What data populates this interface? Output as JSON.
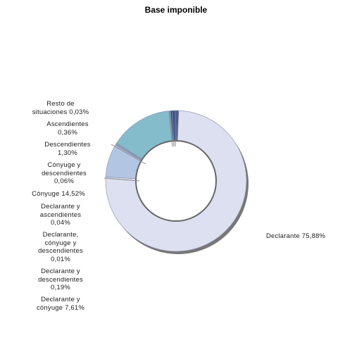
{
  "chart_data": {
    "type": "pie",
    "title": "Base imponible",
    "slices": [
      {
        "name": "Declarante",
        "value": 75.88,
        "label": "Declarante 75,88%",
        "color": "#dde0f0"
      },
      {
        "name": "Declarante y cónyuge",
        "value": 7.61,
        "label": "Declarante y cónyuge 7,61%",
        "color": "#b2c6e4"
      },
      {
        "name": "Declarante y descendientes",
        "value": 0.19,
        "label": "Declarante y descendientes 0,19%",
        "color": "#8fb3d6"
      },
      {
        "name": "Declarante, cónyuge y descendientes",
        "value": 0.01,
        "label": "Declarante, cónyuge y descendientes 0,01%",
        "color": "#9fb8d8"
      },
      {
        "name": "Declarante y ascendientes",
        "value": 0.04,
        "label": "Declarante y ascendientes 0,04%",
        "color": "#7fa6c8"
      },
      {
        "name": "Cónyuge",
        "value": 14.52,
        "label": "Cónyuge 14,52%",
        "color": "#84bccc"
      },
      {
        "name": "Cónyuge y descendientes",
        "value": 0.06,
        "label": "Cónyuge y descendientes 0,06%",
        "color": "#5c8fb8"
      },
      {
        "name": "Descendientes",
        "value": 1.3,
        "label": "Descendientes 1,30%",
        "color": "#2f4f8f"
      },
      {
        "name": "Ascendientes",
        "value": 0.36,
        "label": "Ascendientes 0,36%",
        "color": "#24396c"
      },
      {
        "name": "Resto de situaciones",
        "value": 0.03,
        "label": "Resto de situaciones 0,03%",
        "color": "#3a4a7a"
      }
    ],
    "labels": {
      "declarante": "Declarante 75,88%",
      "resto": [
        "Resto de",
        "situaciones 0,03%"
      ],
      "ascendientes": [
        "Ascendientes",
        "0,36%"
      ],
      "descendientes": [
        "Descendientes",
        "1,30%"
      ],
      "conyuge_desc": [
        "Cónyuge y",
        "descendientes",
        "0,06%"
      ],
      "conyuge": [
        "Cónyuge 14,52%"
      ],
      "decl_asc": [
        "Declarante y",
        "ascendientes",
        "0,04%"
      ],
      "decl_cony_desc": [
        "Declarante,",
        "cónyuge y",
        "descendientes",
        "0,01%"
      ],
      "decl_desc": [
        "Declarante y",
        "descendientes",
        "0,19%"
      ],
      "decl_cony": [
        "Declarante y",
        "cónyuge 7,61%"
      ]
    }
  }
}
